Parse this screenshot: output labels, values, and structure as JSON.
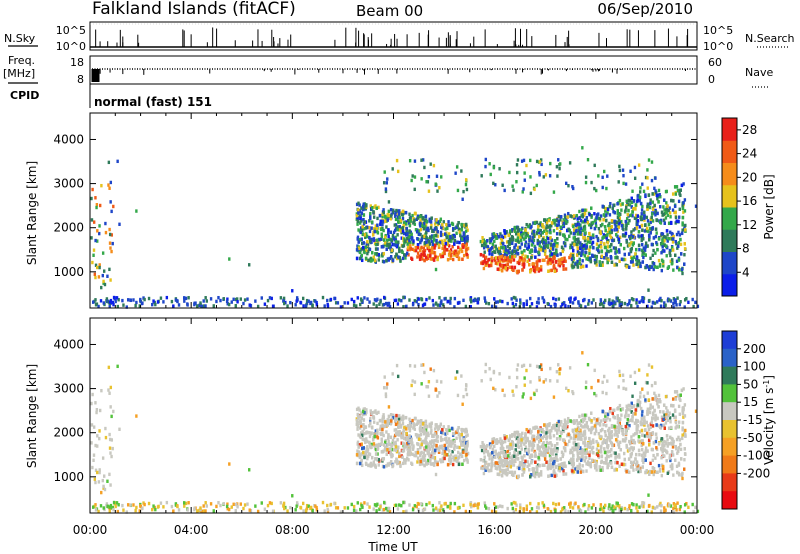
{
  "header": {
    "station": "Falkland Islands (fitACF)",
    "beam": "Beam 00",
    "date": "06/Sep/2010"
  },
  "params": {
    "nsky_label": "N.Sky",
    "nsky_ticks": [
      "10^5",
      "10^0"
    ],
    "nsearch_label": "N.Search",
    "nsearch_ticks": [
      "10^5",
      "10^0"
    ],
    "freq_label": "Freq.",
    "freq_unit": "[MHz]",
    "freq_ticks": [
      "18",
      "8"
    ],
    "nave_label": "Nave",
    "nave_ticks": [
      "60",
      "0"
    ],
    "cpid_label": "CPID",
    "cpid_value": "normal (fast) 151"
  },
  "colors": {
    "power_scale": [
      "#0b1ee8",
      "#1e46c8",
      "#2f7a5a",
      "#33a84a",
      "#e6c21c",
      "#f58c1a",
      "#f05a16",
      "#e8201a"
    ],
    "velocity_scale": [
      "#1e3ed6",
      "#2a62c8",
      "#2f7a5a",
      "#52c23a",
      "#c8c8c0",
      "#e8c230",
      "#f5a024",
      "#f07a18",
      "#e83a18",
      "#e80a10"
    ]
  },
  "chart_data": [
    {
      "type": "heatmap",
      "title": "Power",
      "ylabel": "Slant Range [km]",
      "xlabel": "Time UT",
      "xlim": [
        "00:00",
        "24:00"
      ],
      "x_ticks": [
        "00:00",
        "04:00",
        "08:00",
        "12:00",
        "16:00",
        "20:00",
        "00:00"
      ],
      "ylim": [
        180,
        4600
      ],
      "y_ticks": [
        1000,
        2000,
        3000,
        4000
      ],
      "colorbar": {
        "label": "Power [dB]",
        "ticks": [
          4,
          8,
          12,
          16,
          20,
          24,
          28
        ],
        "range": [
          0,
          30
        ]
      },
      "features": [
        {
          "desc": "main echo band",
          "time_range": [
            "10:30",
            "23:30"
          ],
          "range_km": [
            1100,
            3500
          ],
          "peak_dB": 30
        },
        {
          "desc": "strong ionospheric scatter",
          "time_range": [
            "12:30",
            "19:00"
          ],
          "range_km": [
            1000,
            1600
          ],
          "peak_dB": 28
        },
        {
          "desc": "near-range ground scatter",
          "time_range": [
            "00:00",
            "24:00"
          ],
          "range_km": [
            180,
            400
          ],
          "peak_dB": 10
        },
        {
          "desc": "early echoes",
          "time_range": [
            "00:00",
            "01:00"
          ],
          "range_km": [
            700,
            3100
          ],
          "peak_dB": 24
        }
      ]
    },
    {
      "type": "heatmap",
      "title": "Velocity",
      "ylabel": "Slant Range [km]",
      "xlabel": "Time UT",
      "xlim": [
        "00:00",
        "24:00"
      ],
      "x_ticks": [
        "00:00",
        "04:00",
        "08:00",
        "12:00",
        "16:00",
        "20:00",
        "00:00"
      ],
      "ylim": [
        180,
        4600
      ],
      "y_ticks": [
        1000,
        2000,
        3000,
        4000
      ],
      "colorbar": {
        "label": "Velocity [m s^-1]",
        "ticks": [
          200,
          100,
          50,
          15,
          -15,
          -50,
          -100,
          -200
        ],
        "range": [
          -250,
          250
        ]
      },
      "features": [
        {
          "desc": "ground scatter (grey)",
          "time_range": [
            "10:30",
            "23:30"
          ],
          "range_km": [
            1100,
            3500
          ],
          "velocity": "-15 to 15"
        },
        {
          "desc": "mixed positive/negative velocity echoes",
          "time_range": [
            "17:00",
            "21:00"
          ],
          "range_km": [
            1500,
            3000
          ],
          "velocity": "-200 to 200"
        }
      ]
    }
  ]
}
